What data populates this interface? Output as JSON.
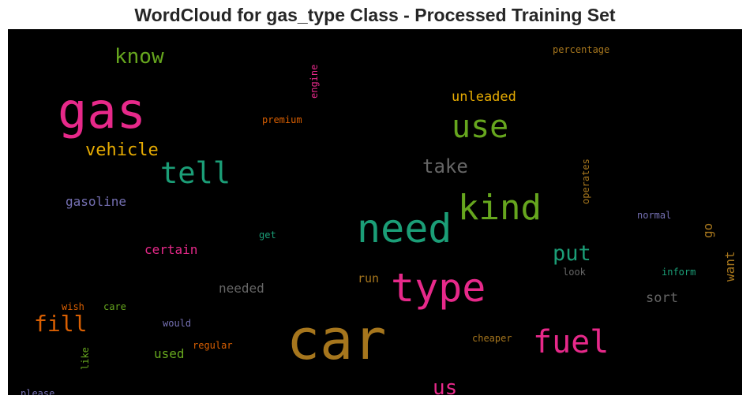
{
  "chart_data": {
    "type": "wordcloud",
    "title": "WordCloud for gas_type Class - Processed Training Set",
    "background": "#000000",
    "words": [
      {
        "text": "car",
        "weight": 100,
        "color": "#a6761d"
      },
      {
        "text": "gas",
        "weight": 86,
        "color": "#e7298a"
      },
      {
        "text": "need",
        "weight": 74,
        "color": "#1b9e77"
      },
      {
        "text": "type",
        "weight": 74,
        "color": "#e7298a"
      },
      {
        "text": "kind",
        "weight": 65,
        "color": "#66a61e"
      },
      {
        "text": "use",
        "weight": 60,
        "color": "#66a61e"
      },
      {
        "text": "fuel",
        "weight": 58,
        "color": "#e7298a"
      },
      {
        "text": "tell",
        "weight": 54,
        "color": "#1b9e77"
      },
      {
        "text": "fill",
        "weight": 42,
        "color": "#d95f02"
      },
      {
        "text": "put",
        "weight": 40,
        "color": "#1b9e77"
      },
      {
        "text": "know",
        "weight": 38,
        "color": "#66a61e"
      },
      {
        "text": "us",
        "weight": 37,
        "color": "#e7298a"
      },
      {
        "text": "take",
        "weight": 34,
        "color": "#666666"
      },
      {
        "text": "vehicle",
        "weight": 32,
        "color": "#e6ab02"
      },
      {
        "text": "unleaded",
        "weight": 24,
        "color": "#e6ab02"
      },
      {
        "text": "sort",
        "weight": 23,
        "color": "#666666"
      },
      {
        "text": "needed",
        "weight": 23,
        "color": "#666666"
      },
      {
        "text": "gasoline",
        "weight": 23,
        "color": "#7570b3"
      },
      {
        "text": "certain",
        "weight": 23,
        "color": "#e7298a"
      },
      {
        "text": "go",
        "weight": 22,
        "color": "#a6761d"
      },
      {
        "text": "want",
        "weight": 22,
        "color": "#a6761d"
      },
      {
        "text": "run",
        "weight": 21,
        "color": "#a6761d"
      },
      {
        "text": "used",
        "weight": 21,
        "color": "#66a61e"
      },
      {
        "text": "percentage",
        "weight": 17,
        "color": "#a6761d"
      },
      {
        "text": "engine",
        "weight": 17,
        "color": "#e7298a"
      },
      {
        "text": "premium",
        "weight": 17,
        "color": "#d95f02"
      },
      {
        "text": "operates",
        "weight": 17,
        "color": "#a6761d"
      },
      {
        "text": "normal",
        "weight": 17,
        "color": "#7570b3"
      },
      {
        "text": "inform",
        "weight": 17,
        "color": "#1b9e77"
      },
      {
        "text": "look",
        "weight": 17,
        "color": "#666666"
      },
      {
        "text": "get",
        "weight": 17,
        "color": "#1b9e77"
      },
      {
        "text": "wish",
        "weight": 17,
        "color": "#d95f02"
      },
      {
        "text": "care",
        "weight": 17,
        "color": "#66a61e"
      },
      {
        "text": "would",
        "weight": 17,
        "color": "#7570b3"
      },
      {
        "text": "regular",
        "weight": 17,
        "color": "#d95f02"
      },
      {
        "text": "cheaper",
        "weight": 17,
        "color": "#a6761d"
      },
      {
        "text": "like",
        "weight": 17,
        "color": "#66a61e"
      },
      {
        "text": "please",
        "weight": 17,
        "color": "#7570b3"
      }
    ]
  }
}
